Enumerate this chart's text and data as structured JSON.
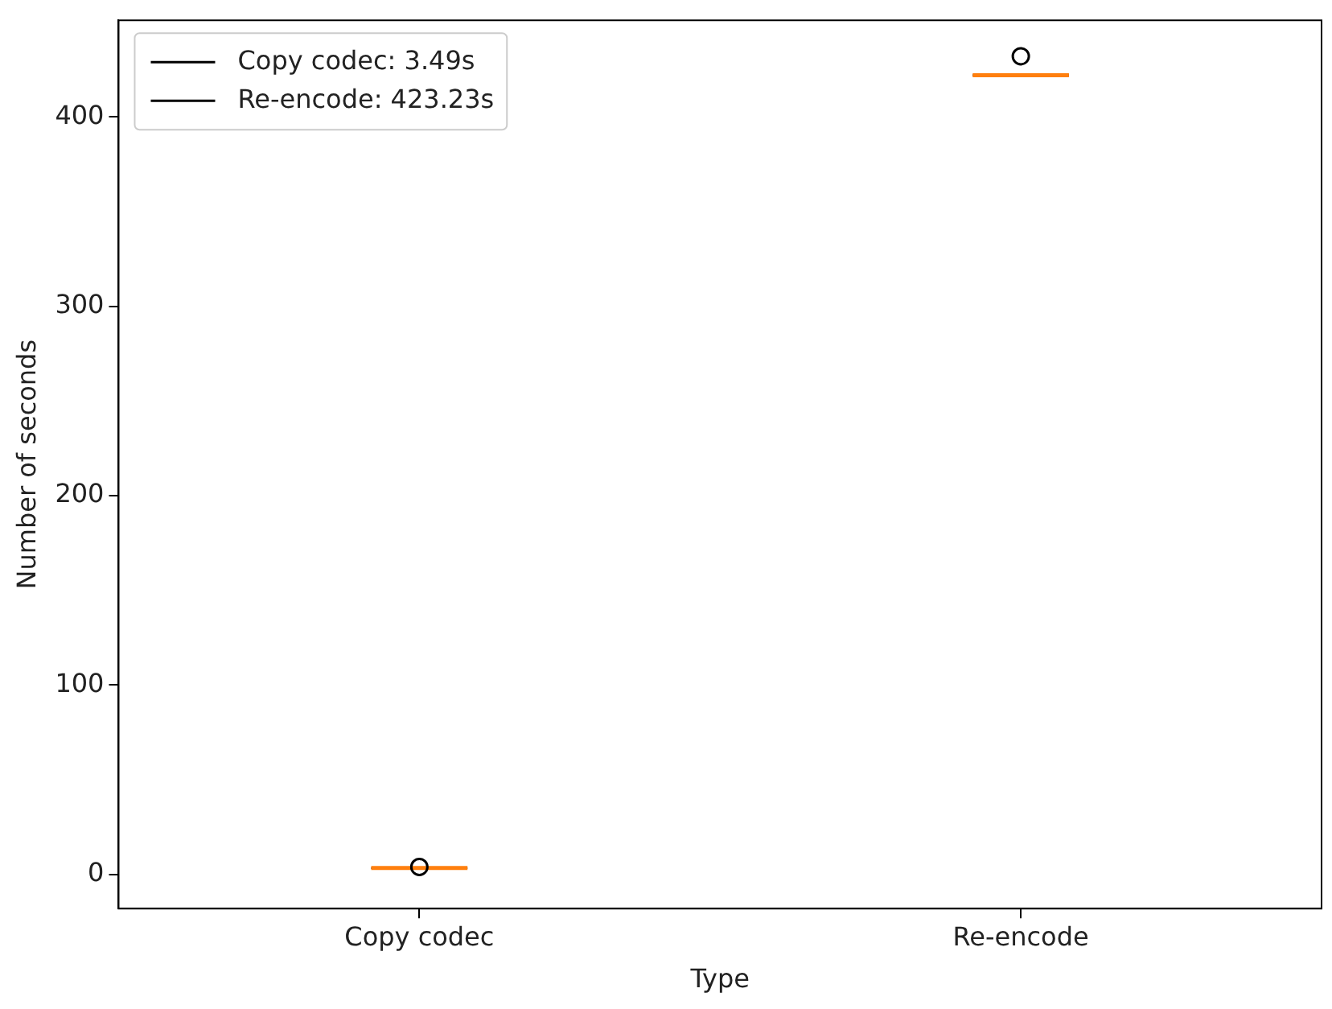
{
  "chart_data": {
    "type": "box",
    "xlabel": "Type",
    "ylabel": "Number of seconds",
    "categories": [
      "Copy codec",
      "Re-encode"
    ],
    "ylim": [
      -18,
      451
    ],
    "yticks": [
      0,
      100,
      200,
      300,
      400
    ],
    "grid": false,
    "legend": "top left",
    "series": [
      {
        "name": "Copy codec: 3.49s",
        "color": "#000000",
        "boxes": [
          {
            "low": 3.4,
            "q1": 3.4,
            "median": 3.4,
            "q3": 3.4,
            "high": 3.4,
            "outliers": [
              4
            ]
          },
          null
        ]
      },
      {
        "name": "Re-encode: 423.23s",
        "color": "#000000",
        "boxes": [
          null,
          {
            "low": 422,
            "q1": 422,
            "median": 422,
            "q3": 422,
            "high": 422,
            "outliers": [
              432
            ]
          }
        ]
      }
    ]
  }
}
